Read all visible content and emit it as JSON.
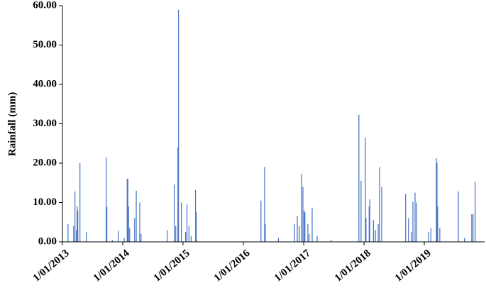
{
  "chart_data": {
    "type": "bar",
    "ylabel": "Rainfall (mm)",
    "color": "#4472c4",
    "xlim": [
      "2013-01-01",
      "2020-01-01"
    ],
    "xticks": [
      {
        "value": "2013-01-01",
        "label": "1/01/2013"
      },
      {
        "value": "2014-01-01",
        "label": "1/01/2014"
      },
      {
        "value": "2015-01-01",
        "label": "1/01/2015"
      },
      {
        "value": "2016-01-01",
        "label": "1/01/2016"
      },
      {
        "value": "2017-01-01",
        "label": "1/01/2017"
      },
      {
        "value": "2018-01-01",
        "label": "1/01/2018"
      },
      {
        "value": "2019-01-01",
        "label": "1/01/2019"
      }
    ],
    "ylim": [
      0,
      60
    ],
    "yticks": [
      {
        "value": 0,
        "label": "0.00"
      },
      {
        "value": 10,
        "label": "10.00"
      },
      {
        "value": 20,
        "label": "20.00"
      },
      {
        "value": 30,
        "label": "30.00"
      },
      {
        "value": 40,
        "label": "40.00"
      },
      {
        "value": 50,
        "label": "50.00"
      },
      {
        "value": 60,
        "label": "60.00"
      }
    ],
    "x": [
      "2013-02-04",
      "2013-03-10",
      "2013-03-18",
      "2013-03-27",
      "2013-03-31",
      "2013-04-04",
      "2013-04-17",
      "2013-05-26",
      "2013-09-23",
      "2013-09-27",
      "2013-10-30",
      "2013-12-05",
      "2014-01-10",
      "2014-01-28",
      "2014-02-01",
      "2014-02-05",
      "2014-02-12",
      "2014-03-14",
      "2014-03-24",
      "2014-04-14",
      "2014-04-22",
      "2014-09-27",
      "2014-11-09",
      "2014-11-18",
      "2014-12-01",
      "2014-12-05",
      "2014-12-22",
      "2015-01-17",
      "2015-01-25",
      "2015-02-06",
      "2015-02-19",
      "2015-03-18",
      "2015-03-22",
      "2016-04-17",
      "2016-05-09",
      "2016-05-13",
      "2016-08-01",
      "2016-11-06",
      "2016-11-23",
      "2016-12-05",
      "2016-12-18",
      "2016-12-27",
      "2017-01-03",
      "2017-01-08",
      "2017-01-26",
      "2017-02-03",
      "2017-02-21",
      "2017-03-23",
      "2017-06-17",
      "2017-12-01",
      "2017-12-14",
      "2018-01-09",
      "2018-01-13",
      "2018-02-01",
      "2018-02-05",
      "2018-02-27",
      "2018-03-11",
      "2018-03-28",
      "2018-04-05",
      "2018-04-18",
      "2018-09-10",
      "2018-09-27",
      "2018-10-15",
      "2018-10-24",
      "2018-11-06",
      "2018-11-15",
      "2019-01-27",
      "2019-02-10",
      "2019-03-15",
      "2019-03-19",
      "2019-03-23",
      "2019-04-05",
      "2019-07-26",
      "2019-09-01",
      "2019-10-15",
      "2019-10-23",
      "2019-11-05"
    ],
    "values": [
      4.5,
      4,
      12.8,
      3,
      9,
      8,
      20,
      2.5,
      21.5,
      8.8,
      0.5,
      2.8,
      1,
      16,
      16,
      9,
      3.5,
      6,
      13,
      10,
      2,
      3,
      14.5,
      4,
      24,
      59,
      10,
      2.5,
      9.5,
      4,
      1.5,
      13.2,
      7.5,
      10.5,
      19,
      4.5,
      1,
      4.5,
      6.5,
      4,
      17.2,
      14,
      8,
      7.5,
      4.5,
      2,
      8.7,
      1.5,
      0.5,
      32.3,
      15.5,
      26.5,
      6,
      9,
      10.8,
      5.5,
      3,
      4.5,
      19,
      14,
      12.2,
      6,
      2.5,
      10.2,
      12.5,
      10,
      2.5,
      3.5,
      21.2,
      20,
      9,
      3.5,
      12.8,
      1,
      7,
      7,
      15.2
    ]
  }
}
